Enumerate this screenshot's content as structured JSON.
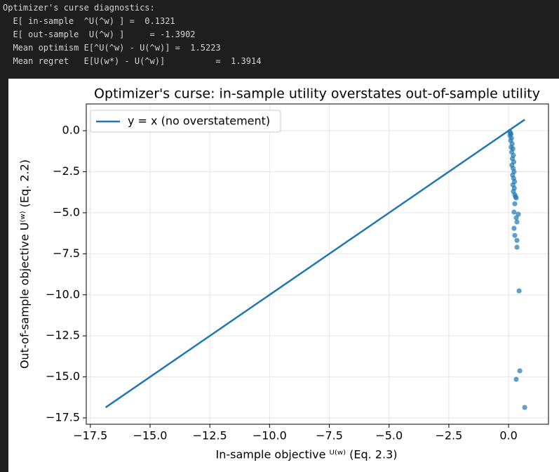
{
  "console": {
    "lines": [
      "Optimizer's curse diagnostics:",
      "  E[ in-sample  ^U(^w) ] =  0.1321",
      "  E[ out-sample  U(^w) ]     = -1.3902",
      "  Mean optimism E[^U(^w) - U(^w)] =  1.5223",
      "  Mean regret   E[U(w*) - U(^w)]          =  1.3914"
    ]
  },
  "chart_data": {
    "type": "scatter",
    "title": "Optimizer's curse: in-sample utility overstates out-of-sample utility",
    "x_label": "In-sample objective  ᵁ⁽ʷ⁾ (Eq. 2.3)",
    "y_label": "Out-of-sample objective  U⁽ʷ⁾ (Eq. 2.2)",
    "series": [
      {
        "name": "y = x (no overstatement)",
        "kind": "line",
        "color": "#1f77b4",
        "x": [
          -16.86,
          0.675
        ],
        "values": [
          -16.86,
          0.675
        ]
      },
      {
        "kind": "scatter",
        "color": "#1f77b4",
        "x": [
          0.05,
          0.08,
          0.06,
          0.1,
          0.12,
          0.09,
          0.15,
          0.11,
          0.18,
          0.13,
          0.2,
          0.16,
          0.22,
          0.14,
          0.19,
          0.23,
          0.17,
          0.21,
          0.25,
          0.18,
          0.24,
          0.2,
          0.26,
          0.29,
          0.32,
          0.26,
          0.23,
          0.32,
          0.35,
          0.41,
          0.23,
          0.26,
          0.35,
          0.35,
          0.44,
          0.32,
          0.47,
          0.675
        ],
        "values": [
          -0.05,
          -0.15,
          -0.3,
          -0.2,
          -0.45,
          -0.6,
          -0.8,
          -1.0,
          -1.1,
          -1.3,
          -1.5,
          -1.7,
          -1.9,
          -2.1,
          -2.3,
          -2.5,
          -2.7,
          -2.9,
          -3.1,
          -3.3,
          -3.5,
          -3.7,
          -3.9,
          -4.02,
          -4.1,
          -4.45,
          -4.96,
          -5.3,
          -5.56,
          -5.09,
          -5.95,
          -6.38,
          -6.68,
          -7.1,
          -9.76,
          -15.15,
          -14.63,
          -16.86
        ]
      }
    ],
    "xlim": [
      -17.67,
      1.67
    ],
    "ylim": [
      -17.885,
      1.63
    ],
    "xticks": [
      {
        "value": -17.5,
        "label": "−17.5"
      },
      {
        "value": -15,
        "label": "−15.0"
      },
      {
        "value": -12.5,
        "label": "−12.5"
      },
      {
        "value": -10,
        "label": "−10.0"
      },
      {
        "value": -7.5,
        "label": "−7.5"
      },
      {
        "value": -5,
        "label": "−5.0"
      },
      {
        "value": -2.5,
        "label": "−2.5"
      },
      {
        "value": 0,
        "label": "0.0"
      }
    ],
    "yticks": [
      {
        "value": -17.5,
        "label": "−17.5"
      },
      {
        "value": -15,
        "label": "−15.0"
      },
      {
        "value": -12.5,
        "label": "−12.5"
      },
      {
        "value": -10,
        "label": "−10.0"
      },
      {
        "value": -7.5,
        "label": "−7.5"
      },
      {
        "value": -5,
        "label": "−5.0"
      },
      {
        "value": -2.5,
        "label": "−2.5"
      },
      {
        "value": 0,
        "label": "0.0"
      }
    ],
    "grid": true,
    "legend": "upper-left"
  }
}
